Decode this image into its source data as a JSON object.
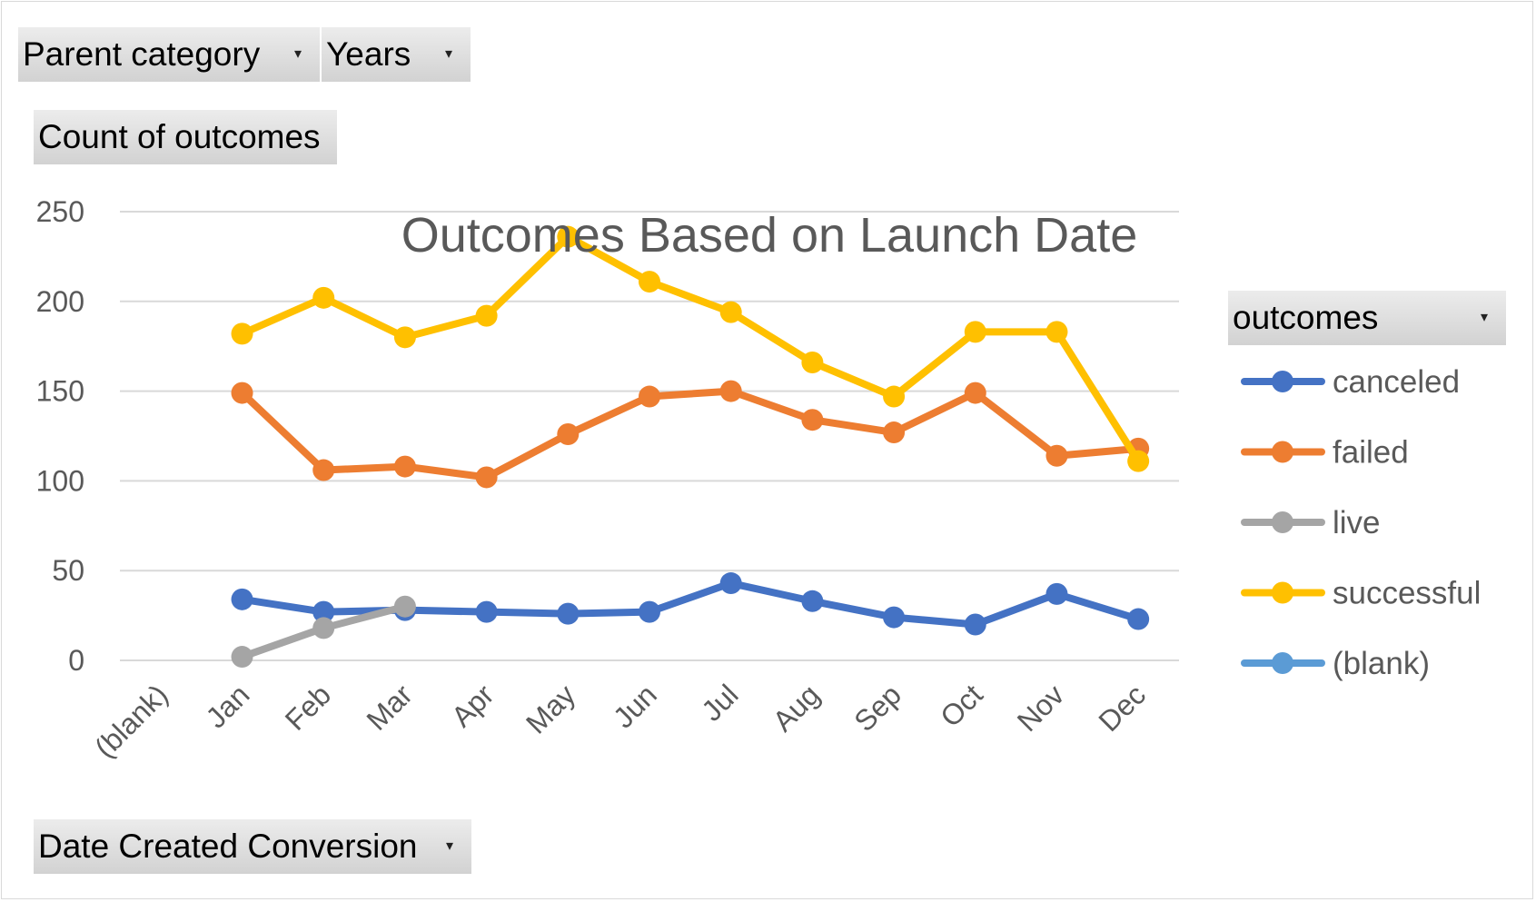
{
  "field_buttons": {
    "parent_category": "Parent category",
    "years": "Years",
    "values_field": "Count of outcomes",
    "legend_field": "outcomes",
    "axis_field": "Date Created Conversion"
  },
  "chart_data": {
    "type": "line",
    "title": "Outcomes Based on Launch Date",
    "categories": [
      "(blank)",
      "Jan",
      "Feb",
      "Mar",
      "Apr",
      "May",
      "Jun",
      "Jul",
      "Aug",
      "Sep",
      "Oct",
      "Nov",
      "Dec"
    ],
    "ylim": [
      0,
      250
    ],
    "yticks": [
      "0",
      "50",
      "100",
      "150",
      "200",
      "250"
    ],
    "grid": true,
    "legend_position": "right",
    "series": [
      {
        "name": "canceled",
        "color": "#4472c4",
        "values": [
          null,
          34,
          27,
          28,
          27,
          26,
          27,
          43,
          33,
          24,
          20,
          37,
          23
        ]
      },
      {
        "name": "failed",
        "color": "#ed7d31",
        "values": [
          null,
          149,
          106,
          108,
          102,
          126,
          147,
          150,
          134,
          127,
          149,
          114,
          118
        ]
      },
      {
        "name": "live",
        "color": "#a5a5a5",
        "values": [
          null,
          2,
          18,
          30,
          null,
          null,
          null,
          null,
          null,
          null,
          null,
          null,
          null
        ]
      },
      {
        "name": "successful",
        "color": "#ffc000",
        "values": [
          null,
          182,
          202,
          180,
          192,
          236,
          211,
          194,
          166,
          147,
          183,
          183,
          111
        ]
      },
      {
        "name": "(blank)",
        "color": "#5b9bd5",
        "values": [
          null,
          null,
          null,
          null,
          null,
          null,
          null,
          null,
          null,
          null,
          null,
          null,
          null
        ]
      }
    ]
  }
}
